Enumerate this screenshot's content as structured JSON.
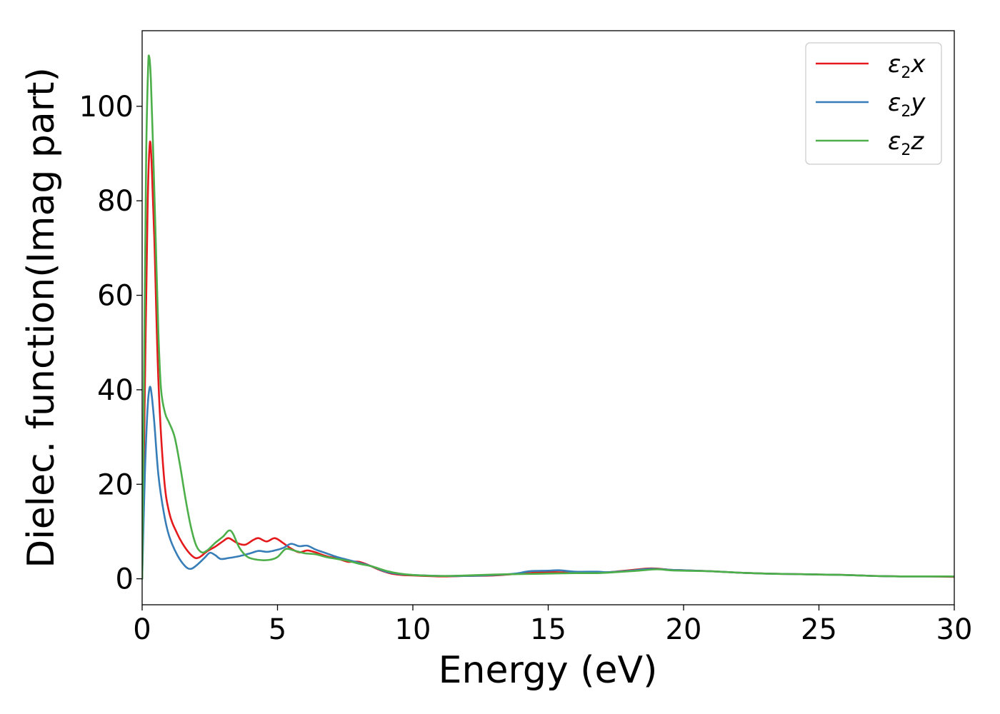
{
  "chart_data": {
    "type": "line",
    "xlabel": "Energy (eV)",
    "ylabel": "Dielec. function(Imag part)",
    "xlim": [
      0,
      30
    ],
    "ylim": [
      -5.5,
      116
    ],
    "xticks": [
      0,
      5,
      10,
      15,
      20,
      25,
      30
    ],
    "yticks": [
      0,
      20,
      40,
      60,
      80,
      100
    ],
    "grid": false,
    "legend_position": "top-right",
    "series": [
      {
        "name": "ε2x",
        "color": "#e41a1c",
        "points": [
          [
            0,
            0
          ],
          [
            0.1,
            40
          ],
          [
            0.2,
            78
          ],
          [
            0.28,
            92
          ],
          [
            0.35,
            88
          ],
          [
            0.45,
            72
          ],
          [
            0.6,
            42
          ],
          [
            0.8,
            22
          ],
          [
            1.0,
            14
          ],
          [
            1.3,
            9.5
          ],
          [
            1.6,
            6.5
          ],
          [
            1.9,
            4.6
          ],
          [
            2.1,
            4.5
          ],
          [
            2.4,
            5.8
          ],
          [
            2.7,
            6.8
          ],
          [
            3.0,
            8.0
          ],
          [
            3.2,
            8.6
          ],
          [
            3.5,
            7.6
          ],
          [
            3.8,
            7.2
          ],
          [
            4.1,
            8.2
          ],
          [
            4.3,
            8.6
          ],
          [
            4.6,
            7.9
          ],
          [
            4.9,
            8.6
          ],
          [
            5.2,
            7.6
          ],
          [
            5.5,
            6.4
          ],
          [
            5.8,
            5.6
          ],
          [
            6.1,
            6.0
          ],
          [
            6.4,
            5.6
          ],
          [
            6.8,
            4.8
          ],
          [
            7.2,
            4.3
          ],
          [
            7.6,
            3.6
          ],
          [
            8.0,
            3.6
          ],
          [
            8.4,
            2.8
          ],
          [
            8.8,
            1.8
          ],
          [
            9.2,
            1.1
          ],
          [
            9.6,
            0.8
          ],
          [
            10,
            0.7
          ],
          [
            11,
            0.5
          ],
          [
            12,
            0.6
          ],
          [
            13,
            0.7
          ],
          [
            14,
            1.1
          ],
          [
            15,
            1.4
          ],
          [
            16,
            1.3
          ],
          [
            17,
            1.3
          ],
          [
            18,
            1.8
          ],
          [
            18.8,
            2.2
          ],
          [
            19.5,
            1.9
          ],
          [
            20,
            1.8
          ],
          [
            21,
            1.6
          ],
          [
            22,
            1.3
          ],
          [
            23,
            1.1
          ],
          [
            24,
            1.0
          ],
          [
            25,
            0.9
          ],
          [
            26,
            0.8
          ],
          [
            27,
            0.6
          ],
          [
            28,
            0.5
          ],
          [
            29,
            0.5
          ],
          [
            30,
            0.4
          ]
        ]
      },
      {
        "name": "ε2y",
        "color": "#377eb8",
        "points": [
          [
            0,
            0
          ],
          [
            0.1,
            22
          ],
          [
            0.2,
            36
          ],
          [
            0.28,
            40.5
          ],
          [
            0.35,
            39
          ],
          [
            0.45,
            33
          ],
          [
            0.6,
            22
          ],
          [
            0.8,
            14
          ],
          [
            1.0,
            9
          ],
          [
            1.3,
            5
          ],
          [
            1.6,
            2.6
          ],
          [
            1.8,
            2.1
          ],
          [
            2.0,
            2.8
          ],
          [
            2.3,
            4.4
          ],
          [
            2.5,
            5.5
          ],
          [
            2.7,
            5.0
          ],
          [
            2.9,
            4.2
          ],
          [
            3.2,
            4.4
          ],
          [
            3.6,
            4.8
          ],
          [
            4.0,
            5.4
          ],
          [
            4.3,
            5.9
          ],
          [
            4.6,
            5.7
          ],
          [
            4.9,
            6.0
          ],
          [
            5.2,
            6.5
          ],
          [
            5.5,
            7.4
          ],
          [
            5.8,
            6.9
          ],
          [
            6.1,
            7.0
          ],
          [
            6.4,
            6.2
          ],
          [
            6.8,
            5.4
          ],
          [
            7.2,
            4.6
          ],
          [
            7.6,
            4.0
          ],
          [
            8.0,
            3.4
          ],
          [
            8.5,
            2.6
          ],
          [
            9.0,
            1.5
          ],
          [
            9.5,
            1.0
          ],
          [
            10,
            0.8
          ],
          [
            11,
            0.6
          ],
          [
            12,
            0.6
          ],
          [
            13,
            0.8
          ],
          [
            13.8,
            1.1
          ],
          [
            14.3,
            1.6
          ],
          [
            15,
            1.7
          ],
          [
            15.4,
            1.8
          ],
          [
            16,
            1.5
          ],
          [
            16.8,
            1.5
          ],
          [
            17.2,
            1.4
          ],
          [
            18,
            1.7
          ],
          [
            18.8,
            2.1
          ],
          [
            19.5,
            1.9
          ],
          [
            20,
            1.8
          ],
          [
            21,
            1.6
          ],
          [
            22,
            1.3
          ],
          [
            23,
            1.1
          ],
          [
            24,
            1.0
          ],
          [
            25,
            0.9
          ],
          [
            26,
            0.8
          ],
          [
            27,
            0.6
          ],
          [
            28,
            0.5
          ],
          [
            29,
            0.5
          ],
          [
            30,
            0.5
          ]
        ]
      },
      {
        "name": "ε2z",
        "color": "#4daf4a",
        "points": [
          [
            0,
            0
          ],
          [
            0.08,
            50
          ],
          [
            0.15,
            90
          ],
          [
            0.22,
            108
          ],
          [
            0.26,
            110.5
          ],
          [
            0.32,
            106
          ],
          [
            0.4,
            92
          ],
          [
            0.5,
            72
          ],
          [
            0.6,
            52
          ],
          [
            0.7,
            40
          ],
          [
            0.85,
            35
          ],
          [
            1.0,
            33
          ],
          [
            1.2,
            30
          ],
          [
            1.4,
            24
          ],
          [
            1.6,
            17
          ],
          [
            1.8,
            11
          ],
          [
            2.0,
            7
          ],
          [
            2.2,
            5.6
          ],
          [
            2.4,
            6.0
          ],
          [
            2.7,
            7.6
          ],
          [
            3.0,
            9.0
          ],
          [
            3.2,
            10.2
          ],
          [
            3.35,
            9.6
          ],
          [
            3.6,
            6.5
          ],
          [
            3.9,
            4.6
          ],
          [
            4.3,
            4.0
          ],
          [
            4.7,
            4.0
          ],
          [
            5.0,
            4.6
          ],
          [
            5.3,
            6.3
          ],
          [
            5.6,
            6.0
          ],
          [
            6.0,
            5.4
          ],
          [
            6.4,
            5.2
          ],
          [
            6.8,
            4.6
          ],
          [
            7.2,
            4.2
          ],
          [
            7.6,
            3.8
          ],
          [
            8.0,
            3.2
          ],
          [
            8.5,
            2.6
          ],
          [
            9.0,
            1.7
          ],
          [
            9.5,
            1.1
          ],
          [
            10,
            0.8
          ],
          [
            11,
            0.6
          ],
          [
            12,
            0.7
          ],
          [
            13,
            0.9
          ],
          [
            14,
            1.0
          ],
          [
            15,
            1.1
          ],
          [
            16,
            1.2
          ],
          [
            16.8,
            1.2
          ],
          [
            17.5,
            1.4
          ],
          [
            18.3,
            1.7
          ],
          [
            19,
            2.0
          ],
          [
            19.5,
            1.8
          ],
          [
            20,
            1.7
          ],
          [
            21,
            1.6
          ],
          [
            22,
            1.3
          ],
          [
            23,
            1.1
          ],
          [
            24,
            1.0
          ],
          [
            25,
            0.9
          ],
          [
            26,
            0.8
          ],
          [
            27,
            0.6
          ],
          [
            28,
            0.5
          ],
          [
            29,
            0.5
          ],
          [
            30,
            0.5
          ]
        ]
      }
    ]
  }
}
